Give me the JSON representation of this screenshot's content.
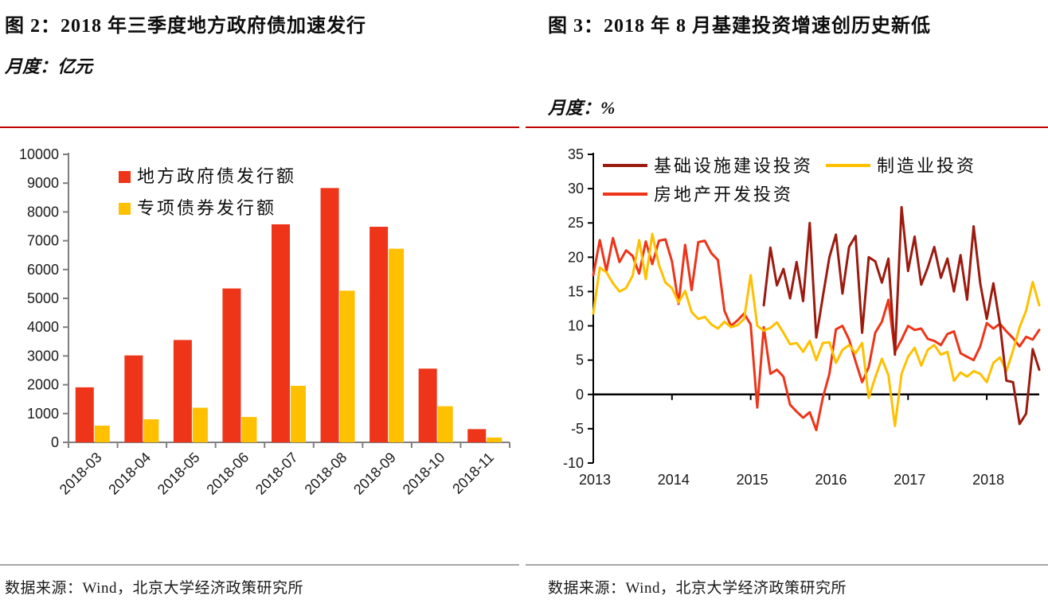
{
  "panels": {
    "left": {
      "title": "图 2：2018 年三季度地方政府债加速发行",
      "subtitle": "月度：亿元",
      "source": "数据来源：Wind，北京大学经济政策研究所",
      "divider_color": "#c00000"
    },
    "right": {
      "title": "图 3：2018 年 8 月基建投资增速创历史新低",
      "subtitle": "月度：%",
      "source": "数据来源：Wind，北京大学经济政策研究所",
      "divider_color": "#c00000"
    }
  },
  "colors": {
    "red": "#ee3419",
    "yellow": "#ffc000",
    "dark_red": "#9b1b10",
    "axis_gray": "#7f7f7f",
    "axis_black": "#000000",
    "tick_label": "#1a1a1a"
  },
  "chart_data": [
    {
      "type": "bar",
      "title": "2018 年三季度地方政府债加速发行",
      "unit": "亿元",
      "categories": [
        "2018-03",
        "2018-04",
        "2018-05",
        "2018-06",
        "2018-07",
        "2018-08",
        "2018-09",
        "2018-10",
        "2018-11"
      ],
      "series": [
        {
          "name": "地方政府债发行额",
          "color": "#ee3419",
          "values": [
            1910,
            3018,
            3553,
            5343,
            7570,
            8830,
            7485,
            2560,
            459
          ]
        },
        {
          "name": "专项债券发行额",
          "color": "#ffc000",
          "values": [
            580,
            799,
            1202,
            880,
            1963,
            5266,
            6723,
            1254,
            167
          ]
        }
      ],
      "ylim": [
        0,
        10000
      ],
      "ytick_step": 1000,
      "grid": false,
      "legend_position": "top-left-inside",
      "x_labels_rotated_deg": 45
    },
    {
      "type": "line",
      "title": "2018 年 8 月基建投资增速创历史新低",
      "unit": "%",
      "x_start": "2013-01",
      "x_end": "2018-09",
      "year_labels": [
        "2013",
        "2014",
        "2015",
        "2016",
        "2017",
        "2018"
      ],
      "ylim": [
        -10,
        35
      ],
      "ytick_step": 5,
      "grid": false,
      "zero_line": true,
      "legend_position": "top-inside",
      "series": [
        {
          "name": "基础设施建设投资",
          "color": "#9b1b10",
          "values": [
            null,
            null,
            null,
            null,
            null,
            null,
            null,
            null,
            null,
            null,
            null,
            null,
            null,
            null,
            null,
            null,
            null,
            null,
            null,
            null,
            null,
            null,
            null,
            null,
            null,
            null,
            13.0,
            21.4,
            15.9,
            18.3,
            14.0,
            19.3,
            13.6,
            25.0,
            8.3,
            14.2,
            20.0,
            23.3,
            14.7,
            21.5,
            23.1,
            9.0,
            20.0,
            19.4,
            16.3,
            19.8,
            5.8,
            27.3,
            18.0,
            23.0,
            16.0,
            18.5,
            21.5,
            17.0,
            19.8,
            15.0,
            20.3,
            13.8,
            24.5,
            16.2,
            11.0,
            16.2,
            10.3,
            2.0,
            1.8,
            -4.3,
            -2.8,
            6.6,
            3.6
          ]
        },
        {
          "name": "制造业投资",
          "color": "#ffc000",
          "values": [
            11.8,
            18.5,
            17.8,
            16.2,
            15.0,
            15.5,
            17.3,
            22.5,
            16.8,
            23.4,
            18.9,
            16.3,
            15.5,
            13.4,
            15.1,
            12.0,
            11.0,
            11.3,
            10.2,
            9.6,
            10.6,
            9.8,
            10.1,
            11.0,
            17.4,
            10.0,
            9.3,
            9.7,
            10.5,
            9.0,
            7.3,
            7.5,
            6.2,
            7.8,
            5.0,
            7.5,
            7.6,
            4.6,
            6.5,
            7.2,
            6.0,
            7.5,
            -0.5,
            2.5,
            5.2,
            2.8,
            -4.6,
            3.0,
            5.5,
            6.8,
            4.2,
            6.5,
            7.2,
            5.8,
            6.2,
            2.0,
            3.2,
            2.6,
            3.4,
            3.0,
            1.8,
            4.6,
            5.4,
            3.4,
            6.4,
            9.8,
            12.2,
            16.4,
            13.0
          ]
        },
        {
          "name": "房地产开发投资",
          "color": "#ee3419",
          "values": [
            17.4,
            22.5,
            18.0,
            22.8,
            19.3,
            21.0,
            20.2,
            17.6,
            22.3,
            19.0,
            22.4,
            22.6,
            19.4,
            13.2,
            21.8,
            15.2,
            22.2,
            22.4,
            20.6,
            19.6,
            12.2,
            10.0,
            10.8,
            11.8,
            10.2,
            -1.9,
            9.8,
            3.0,
            3.6,
            2.6,
            -1.5,
            -2.5,
            -3.4,
            -2.6,
            -5.2,
            -0.5,
            3.0,
            9.5,
            10.0,
            8.0,
            4.8,
            1.8,
            4.0,
            9.0,
            10.6,
            13.8,
            6.2,
            8.0,
            10.0,
            9.4,
            9.6,
            8.1,
            7.8,
            7.2,
            8.8,
            9.2,
            6.0,
            5.5,
            5.0,
            7.0,
            10.4,
            9.6,
            10.3,
            9.2,
            8.2,
            7.0,
            8.4,
            8.0,
            9.4
          ]
        }
      ]
    }
  ]
}
